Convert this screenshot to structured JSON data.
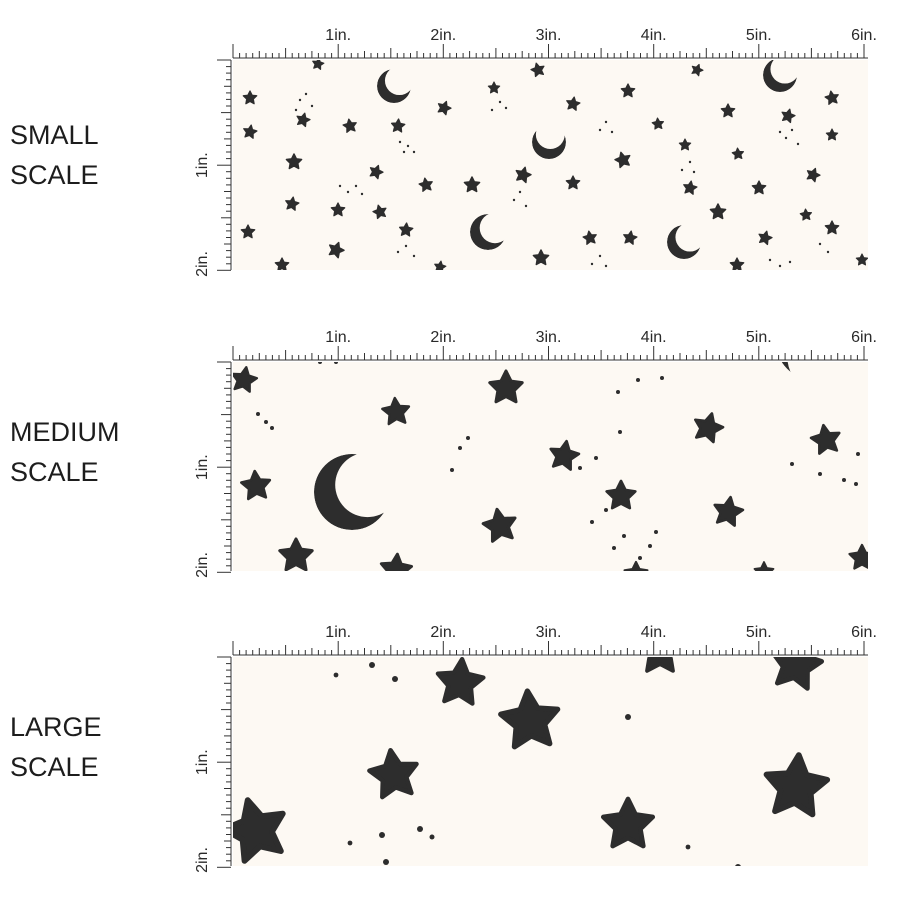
{
  "colors": {
    "fabric": "#fdf9f3",
    "motif": "#2d2d2d",
    "ruler": "#333333"
  },
  "ruler_labels": {
    "top": [
      "1in.",
      "2in.",
      "3in.",
      "4in.",
      "5in.",
      "6in."
    ],
    "side": [
      "1in.",
      "2in."
    ]
  },
  "panels": [
    {
      "line1": "SMALL",
      "line2": "SCALE",
      "motif_names": [
        "star-icon",
        "crescent-moon-icon",
        "dot-cluster"
      ]
    },
    {
      "line1": "MEDIUM",
      "line2": "SCALE",
      "motif_names": [
        "star-icon",
        "crescent-moon-icon",
        "dot-cluster"
      ]
    },
    {
      "line1": "LARGE",
      "line2": "SCALE",
      "motif_names": [
        "star-icon",
        "dot-cluster"
      ]
    }
  ]
}
